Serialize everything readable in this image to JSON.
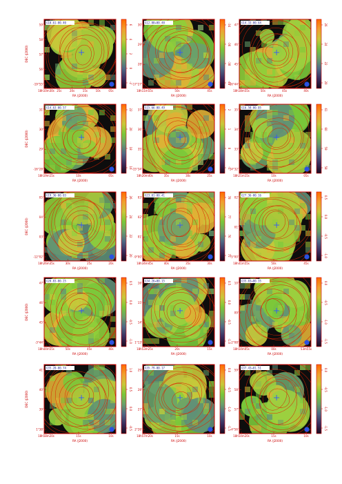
{
  "figure": {
    "xlabel": "RA (J2000)",
    "ylabel": "DEC (J2000)"
  },
  "colors": {
    "background": "#ffffff",
    "frame": "#cc0000",
    "contour": "#dd2200",
    "blank": "#0d0d0d",
    "marker": "#3355ff",
    "beam": "#2a52e0",
    "colormap": [
      "#1b0b1f",
      "#3b2d5e",
      "#4f6a86",
      "#6aa16a",
      "#7ac83a",
      "#c8c83a",
      "#f0a030",
      "#ff6a00"
    ]
  },
  "chart_data": [
    {
      "type": "heatmap",
      "label": "G10.61-00.40",
      "ra_ticks": [
        "18h10m30s",
        "25s",
        "20s",
        "15s",
        "10s",
        "05s"
      ],
      "dec_ticks": [
        "-19°55'",
        "56'",
        "57'",
        "58'",
        "59'"
      ],
      "cb_ticks": [
        "-2",
        "0",
        "2",
        "4",
        "6"
      ]
    },
    {
      "type": "heatmap",
      "label": "G12.88+00.48",
      "ra_ticks": [
        "18h11m55s",
        "50s",
        "45s"
      ],
      "dec_ticks": [
        "-17°27'",
        "28'",
        "29'",
        "30'"
      ],
      "cb_ticks": [
        "-40",
        "-38",
        "-36",
        "-34"
      ]
    },
    {
      "type": "heatmap",
      "label": "G14.33-00.64",
      "ra_ticks": [
        "18h18m55s",
        "50s",
        "45s",
        "40s"
      ],
      "dec_ticks": [
        "-16°44'",
        "45'",
        "46'",
        "47'"
      ],
      "cb_ticks": [
        "20",
        "22",
        "24",
        "26"
      ]
    },
    {
      "type": "heatmap",
      "label": "G14.63-00.57",
      "ra_ticks": [
        "18h19m15s",
        "10s",
        "05s"
      ],
      "dec_ticks": [
        "-16°28'",
        "29'",
        "30'",
        "31'"
      ],
      "cb_ticks": [
        "16",
        "18",
        "20",
        "22"
      ]
    },
    {
      "type": "heatmap",
      "label": "G15.66-00.49",
      "ra_ticks": [
        "18h20m40s",
        "35s",
        "30s",
        "25s"
      ],
      "dec_ticks": [
        "-15°34'",
        "35'",
        "36'",
        "37'"
      ],
      "cb_ticks": [
        "-1",
        "0",
        "1",
        "2"
      ]
    },
    {
      "type": "heatmap",
      "label": "G16.58-00.05",
      "ra_ticks": [
        "18h21m15s",
        "10s",
        "05s"
      ],
      "dec_ticks": [
        "-14°32'",
        "33'",
        "34'",
        "35'"
      ],
      "cb_ticks": [
        "58",
        "59",
        "60",
        "61"
      ]
    },
    {
      "type": "heatmap",
      "label": "G19.36-00.03",
      "ra_ticks": [
        "18h26m35s",
        "30s",
        "25s",
        "20s"
      ],
      "dec_ticks": [
        "-12°02'",
        "03'",
        "04'",
        "05'"
      ],
      "cb_ticks": [
        "20",
        "22",
        "24",
        "26"
      ]
    },
    {
      "type": "heatmap",
      "label": "G23.01-00.41",
      "ra_ticks": [
        "18h34m45s",
        "40s",
        "35s",
        "30s"
      ],
      "dec_ticks": [
        "-9°00'",
        "01'",
        "02'",
        "03'"
      ],
      "cb_ticks": [
        "75",
        "76",
        "77",
        "78"
      ]
    },
    {
      "type": "heatmap",
      "label": "G27.36-00.16",
      "ra_ticks": [
        "18h41m55s",
        "50s",
        "45s"
      ],
      "dec_ticks": [
        "-5°00'",
        "01'",
        "02'"
      ],
      "cb_ticks": [
        "-1.0",
        "-0.5",
        "0.0",
        "0.5"
      ]
    },
    {
      "type": "heatmap",
      "label": "G28.83-00.25",
      "ra_ticks": [
        "18h44m55s",
        "50s",
        "45s",
        "40s"
      ],
      "dec_ticks": [
        "-3°44'",
        "45'",
        "46'",
        "47'"
      ],
      "cb_ticks": [
        "-1.0",
        "-0.5",
        "0.0",
        "0.5"
      ]
    },
    {
      "type": "heatmap",
      "label": "G34.26+00.15",
      "ra_ticks": [
        "18h53m25s",
        "20s",
        "15s"
      ],
      "dec_ticks": [
        "1°13'",
        "14'",
        "15'",
        "16'"
      ],
      "cb_ticks": [
        "-1.0",
        "-0.5",
        "0.0",
        "0.5"
      ]
    },
    {
      "type": "heatmap",
      "label": "G35.03+00.35",
      "ra_ticks": [
        "18h54m05s",
        "00s",
        "53m55s"
      ],
      "dec_ticks": [
        "2°08'",
        "09'",
        "10'"
      ],
      "cb_ticks": [
        "-1.5",
        "-1.0",
        "-0.5",
        "0.0"
      ]
    },
    {
      "type": "heatmap",
      "label": "G35.20-00.74",
      "ra_ticks": [
        "18h58m20s",
        "15s",
        "10s"
      ],
      "dec_ticks": [
        "1°38'",
        "39'",
        "40'",
        "41'"
      ],
      "cb_ticks": [
        "-0.5",
        "0.0",
        "0.5",
        "1.0"
      ]
    },
    {
      "type": "heatmap",
      "label": "G35.79-00.17",
      "ra_ticks": [
        "18h57m20s",
        "15s",
        "10s"
      ],
      "dec_ticks": [
        "2°26'",
        "27'",
        "28'",
        "29'"
      ],
      "cb_ticks": [
        "-1.5",
        "-1.0",
        "-0.5",
        "0.0"
      ]
    },
    {
      "type": "heatmap",
      "label": "G37.43+01.51",
      "ra_ticks": [
        "18h54m20s",
        "15s",
        "10s"
      ],
      "dec_ticks": [
        "4°56'",
        "57'",
        "58'",
        "59'"
      ],
      "cb_ticks": [
        "-1.5",
        "-1.0",
        "-0.5",
        "0.0"
      ]
    }
  ]
}
